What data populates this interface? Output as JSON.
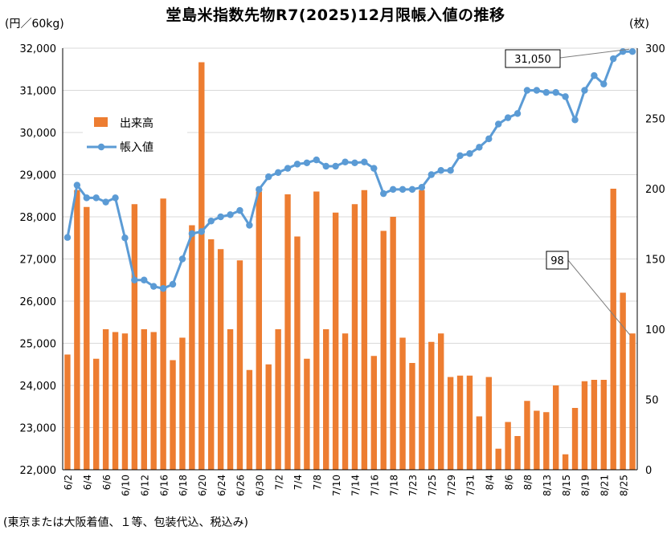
{
  "chart_data": {
    "type": "bar+line",
    "title": "堂島米指数先物R7(2025)12月限帳入値の推移",
    "left_unit": "(円／60kg)",
    "right_unit": "(枚)",
    "note": "(東京または大阪着値、１等、包装代込、税込み)",
    "ylim_left": [
      22000,
      32000
    ],
    "ylim_right": [
      0,
      300
    ],
    "left_ticks": [
      "22,000",
      "23,000",
      "24,000",
      "25,000",
      "26,000",
      "27,000",
      "28,000",
      "29,000",
      "30,000",
      "31,000",
      "32,000"
    ],
    "right_ticks": [
      "0",
      "50",
      "100",
      "150",
      "200",
      "250",
      "300"
    ],
    "x_tick_labels": [
      "6/2",
      "6/4",
      "6/6",
      "6/10",
      "6/12",
      "6/16",
      "6/18",
      "6/20",
      "6/24",
      "6/26",
      "6/30",
      "7/2",
      "7/4",
      "7/8",
      "7/10",
      "7/14",
      "7/16",
      "7/18",
      "7/23",
      "7/25",
      "7/29",
      "7/31",
      "8/4",
      "8/6",
      "8/8",
      "8/13",
      "8/15",
      "8/19",
      "8/21",
      "8/25"
    ],
    "legend": [
      {
        "name": "出来高",
        "color": "#ED7D31",
        "kind": "bar"
      },
      {
        "name": "帳入値",
        "color": "#5B9BD5",
        "kind": "line"
      }
    ],
    "volume": [
      82,
      199,
      187,
      79,
      100,
      98,
      97,
      189,
      100,
      98,
      193,
      78,
      94,
      174,
      290,
      164,
      157,
      100,
      149,
      71,
      198,
      75,
      100,
      196,
      166,
      79,
      198,
      100,
      183,
      97,
      189,
      199,
      81,
      170,
      180,
      94,
      76,
      199,
      91,
      97,
      66,
      67,
      67,
      38,
      66,
      15,
      34,
      24,
      49,
      42,
      41,
      60,
      11,
      44,
      63,
      64,
      64,
      200,
      126,
      97
    ],
    "price": [
      27510,
      28750,
      28450,
      28450,
      28350,
      28450,
      27500,
      26500,
      26500,
      26350,
      26300,
      26400,
      27000,
      27600,
      27650,
      27900,
      28000,
      28050,
      28150,
      27800,
      28650,
      28950,
      29050,
      29150,
      29250,
      29280,
      29350,
      29200,
      29200,
      29300,
      29280,
      29300,
      29150,
      28550,
      28650,
      28650,
      28650,
      28700,
      29000,
      29100,
      29100,
      29450,
      29500,
      29650,
      29850,
      30200,
      30350,
      30450,
      31000,
      31000,
      30950,
      30950,
      30850,
      30300,
      31000,
      31350,
      31150,
      31750,
      31920,
      31920
    ],
    "callouts": [
      {
        "label": "31,050",
        "series": "帳入値"
      },
      {
        "label": "98",
        "series": "出来高"
      }
    ]
  }
}
